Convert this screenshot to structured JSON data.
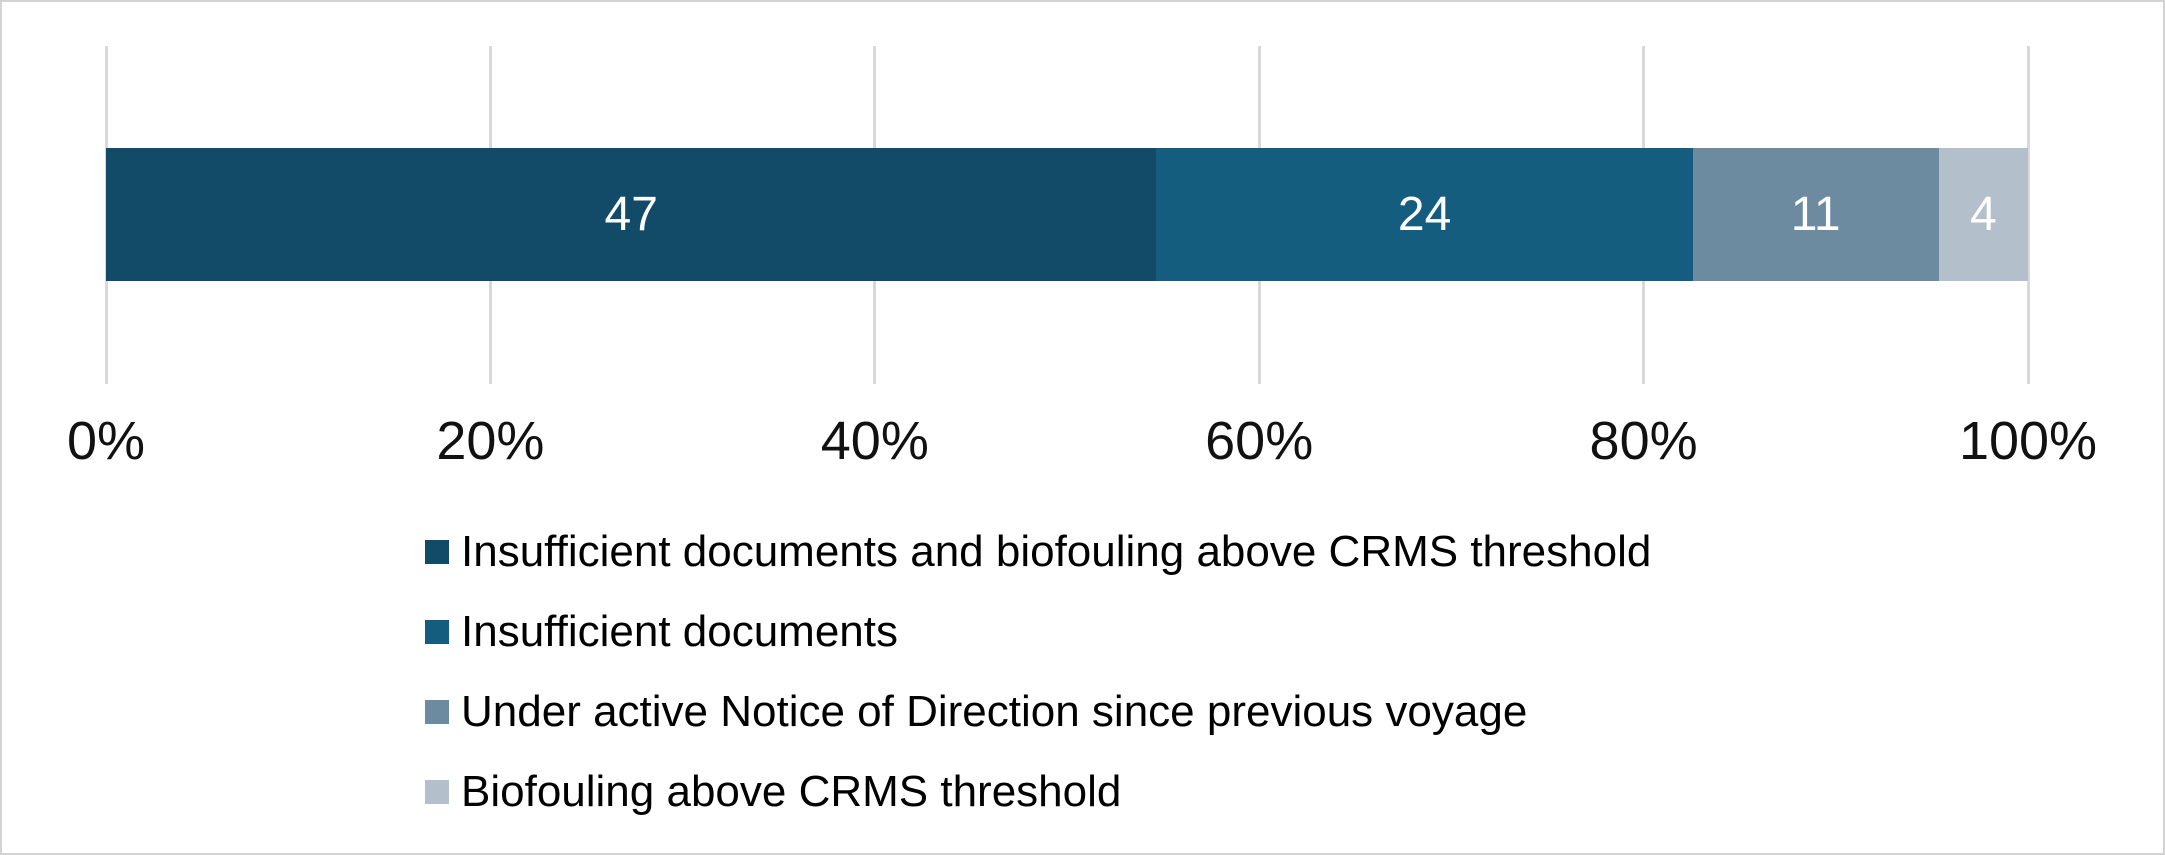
{
  "chart_data": {
    "type": "bar",
    "variant": "horizontal-stacked-100pct",
    "title": "",
    "xlabel": "",
    "ylabel": "",
    "xlim": [
      0,
      100
    ],
    "grid": "vertical",
    "gridline_color": "#d9d9d9",
    "background_color": "#ffffff",
    "frame_border_color": "#d3d3d3",
    "value_label_color": "#ffffff",
    "axis_text_color": "#111111",
    "x_ticks": [
      "0%",
      "20%",
      "40%",
      "60%",
      "80%",
      "100%"
    ],
    "series": [
      {
        "name": "Insufficient documents and biofouling above CRMS threshold",
        "value": 47,
        "color": "#114b67"
      },
      {
        "name": "Insufficient documents",
        "value": 24,
        "color": "#145d7e"
      },
      {
        "name": "Under active Notice of Direction since previous voyage",
        "value": 11,
        "color": "#6c8aa0"
      },
      {
        "name": "Biofouling above CRMS threshold",
        "value": 4,
        "color": "#b3bfcb"
      }
    ],
    "legend_position": "bottom"
  }
}
